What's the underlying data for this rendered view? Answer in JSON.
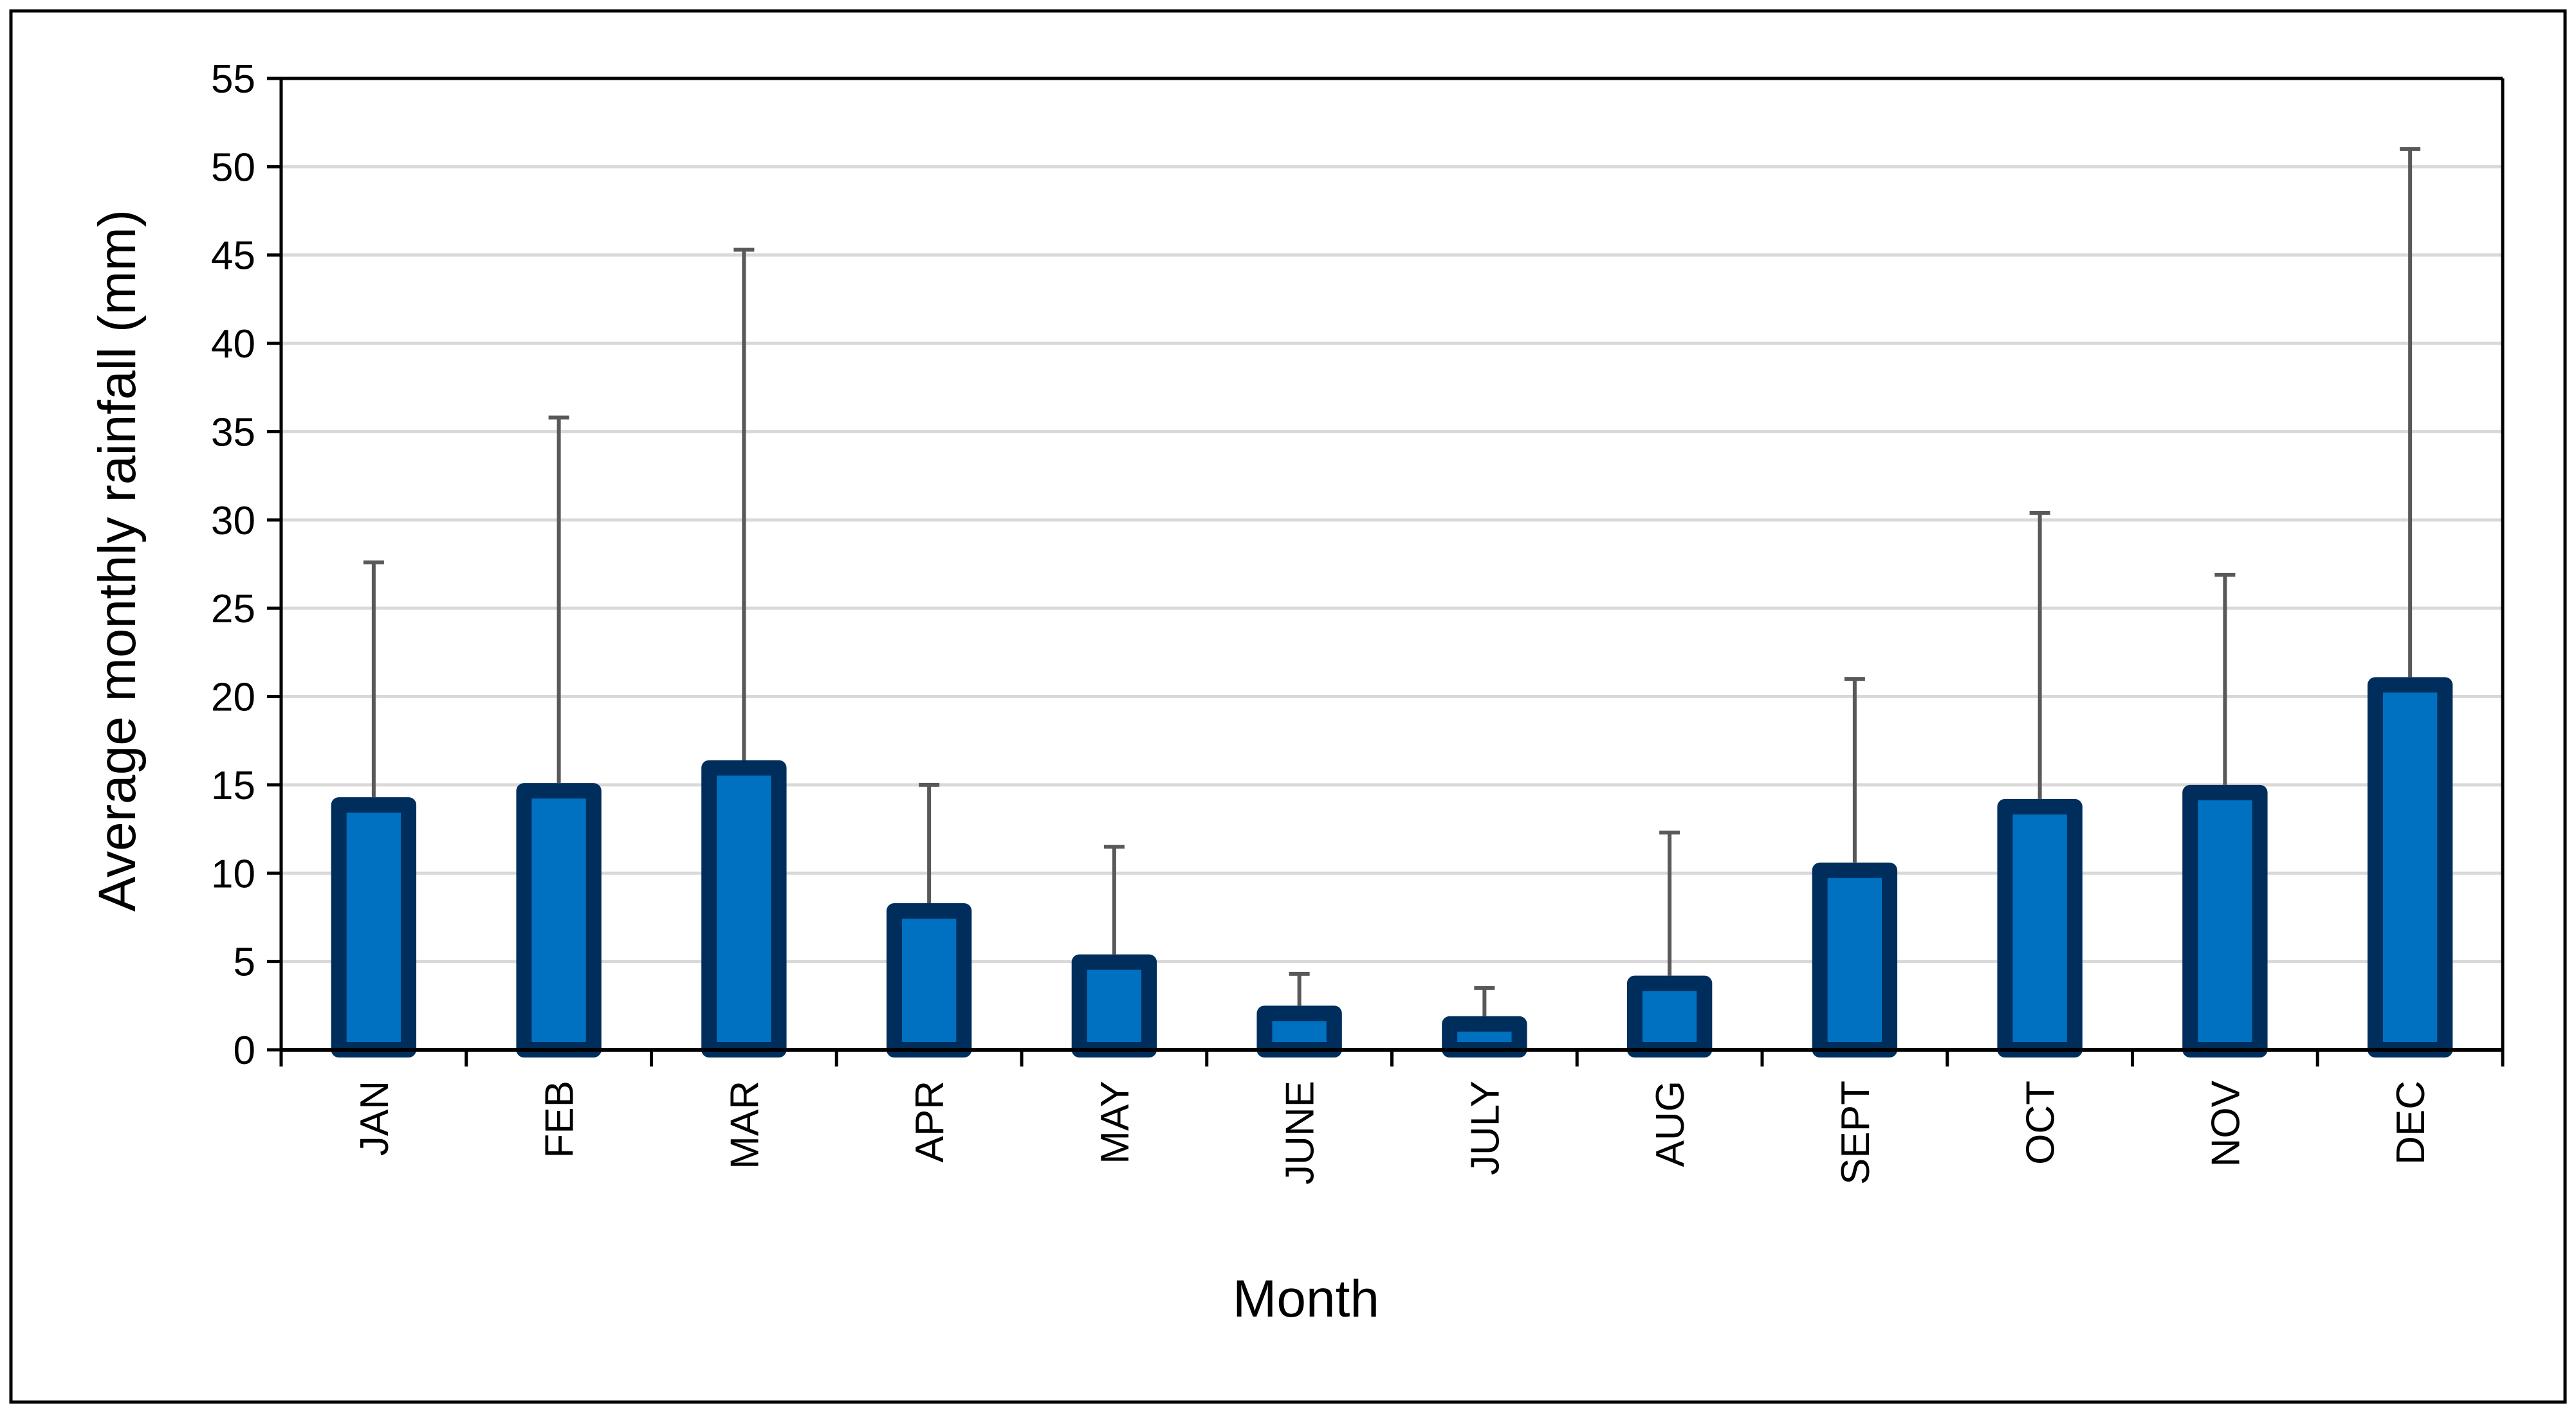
{
  "chart_data": {
    "type": "bar",
    "title": "",
    "xlabel": "Month",
    "ylabel": "Average monthly rainfall (mm)",
    "categories": [
      "JAN",
      "FEB",
      "MAR",
      "APR",
      "MAY",
      "JUNE",
      "JULY",
      "AUG",
      "SEPT",
      "OCT",
      "NOV",
      "DEC"
    ],
    "series": [
      {
        "values": [
          14.3,
          15.1,
          16.4,
          8.3,
          5.4,
          2.5,
          1.9,
          4.2,
          10.6,
          14.2,
          15.0,
          21.1
        ],
        "error_upper": [
          27.6,
          35.8,
          45.3,
          15.0,
          11.5,
          4.3,
          3.5,
          12.3,
          21.0,
          30.4,
          26.9,
          51.0
        ]
      }
    ],
    "ylim": [
      0,
      55
    ],
    "yticks": [
      0,
      5,
      10,
      15,
      20,
      25,
      30,
      35,
      40,
      45,
      50,
      55
    ],
    "grid": true,
    "legend": "none",
    "colors": {
      "bar_fill": "#0070C0",
      "bar_border": "#002E5C",
      "error_bar": "#595959",
      "grid": "#D9D9D9",
      "axis": "#000000"
    }
  }
}
